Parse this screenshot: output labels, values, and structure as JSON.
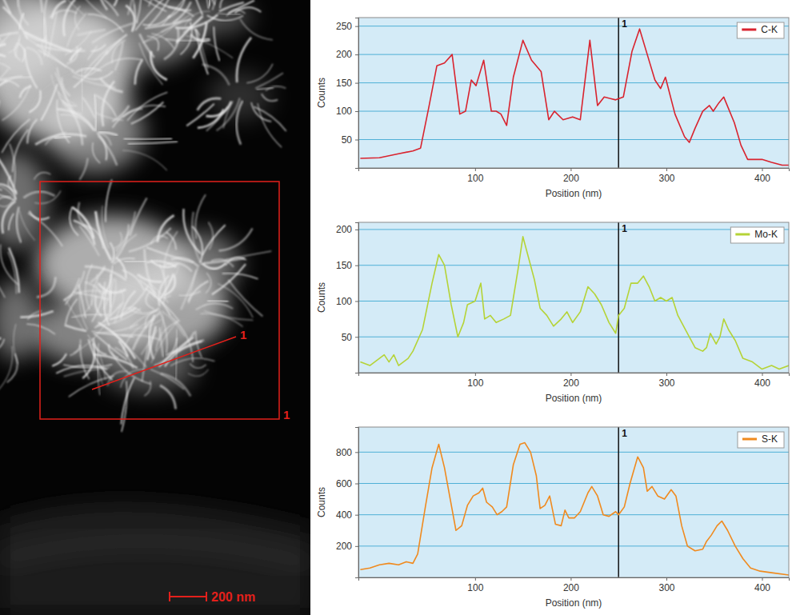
{
  "image": {
    "box_label": "1",
    "line_label": "1",
    "scale_bar": "200 nm"
  },
  "chart_data": [
    {
      "type": "line",
      "xlabel": "Position (nm)",
      "ylabel": "Counts",
      "xlim": [
        -22,
        428
      ],
      "xticks": [
        100,
        200,
        300,
        400
      ],
      "ylim": [
        0,
        265
      ],
      "yticks": [
        50,
        100,
        150,
        200,
        250
      ],
      "grid": true,
      "legend": "upper right",
      "annotations": [
        {
          "x": 250,
          "text": "1"
        }
      ],
      "x": [
        -20,
        0,
        20,
        35,
        43,
        52,
        60,
        68,
        76,
        84,
        90,
        96,
        101,
        109,
        117,
        122,
        127,
        133,
        140,
        150,
        159,
        169,
        177,
        183,
        192,
        202,
        210,
        220,
        228,
        235,
        247,
        255,
        264,
        272,
        280,
        288,
        294,
        299,
        309,
        319,
        324,
        330,
        338,
        345,
        349,
        355,
        360,
        371,
        378,
        385,
        392,
        400,
        410,
        421,
        428
      ],
      "series": [
        {
          "name": "C-K",
          "color": "#d9232e",
          "values": [
            17,
            18,
            25,
            30,
            35,
            110,
            180,
            185,
            200,
            95,
            100,
            155,
            145,
            190,
            100,
            100,
            95,
            75,
            160,
            225,
            190,
            170,
            85,
            100,
            85,
            90,
            85,
            225,
            110,
            125,
            120,
            125,
            205,
            245,
            200,
            155,
            140,
            160,
            95,
            55,
            45,
            70,
            100,
            110,
            100,
            115,
            125,
            80,
            40,
            15,
            15,
            15,
            10,
            5,
            5
          ]
        }
      ]
    },
    {
      "type": "line",
      "xlabel": "Position (nm)",
      "ylabel": "Counts",
      "xlim": [
        -22,
        428
      ],
      "xticks": [
        100,
        200,
        300,
        400
      ],
      "ylim": [
        0,
        210
      ],
      "yticks": [
        50,
        100,
        150,
        200
      ],
      "grid": true,
      "legend": "upper right",
      "annotations": [
        {
          "x": 250,
          "text": "1"
        }
      ],
      "x": [
        -20,
        -10,
        0,
        5,
        10,
        15,
        20,
        25,
        30,
        35,
        45,
        55,
        62,
        68,
        75,
        82,
        88,
        92,
        100,
        106,
        110,
        116,
        122,
        130,
        137,
        145,
        150,
        155,
        162,
        168,
        175,
        182,
        190,
        196,
        202,
        210,
        218,
        225,
        232,
        240,
        247,
        250,
        256,
        263,
        270,
        276,
        282,
        288,
        294,
        300,
        306,
        312,
        320,
        330,
        338,
        342,
        346,
        352,
        356,
        360,
        365,
        372,
        380,
        390,
        400,
        410,
        418,
        428
      ],
      "series": [
        {
          "name": "Mo-K",
          "color": "#b5d336",
          "values": [
            15,
            10,
            20,
            25,
            15,
            25,
            10,
            15,
            20,
            30,
            60,
            125,
            165,
            150,
            95,
            50,
            70,
            95,
            100,
            125,
            75,
            80,
            70,
            75,
            80,
            145,
            190,
            165,
            130,
            90,
            80,
            65,
            75,
            85,
            70,
            85,
            120,
            110,
            95,
            70,
            55,
            80,
            90,
            125,
            125,
            135,
            120,
            100,
            105,
            100,
            105,
            80,
            60,
            35,
            30,
            35,
            55,
            40,
            50,
            75,
            60,
            45,
            20,
            15,
            5,
            10,
            5,
            10
          ]
        }
      ]
    },
    {
      "type": "line",
      "xlabel": "Position (nm)",
      "ylabel": "Counts",
      "xlim": [
        -22,
        428
      ],
      "xticks": [
        100,
        200,
        300,
        400
      ],
      "ylim": [
        0,
        960
      ],
      "yticks": [
        200,
        400,
        600,
        800
      ],
      "grid": true,
      "legend": "upper right",
      "annotations": [
        {
          "x": 250,
          "text": "1"
        }
      ],
      "x": [
        -20,
        -10,
        0,
        10,
        20,
        28,
        35,
        40,
        48,
        55,
        62,
        68,
        74,
        80,
        86,
        92,
        98,
        104,
        108,
        112,
        118,
        123,
        128,
        133,
        140,
        147,
        152,
        158,
        164,
        168,
        173,
        178,
        184,
        190,
        194,
        198,
        204,
        210,
        218,
        222,
        228,
        234,
        240,
        247,
        250,
        256,
        262,
        270,
        276,
        280,
        285,
        291,
        298,
        305,
        310,
        316,
        322,
        330,
        338,
        342,
        347,
        353,
        358,
        364,
        372,
        380,
        388,
        398,
        410,
        428
      ],
      "series": [
        {
          "name": "S-K",
          "color": "#f08a1e",
          "values": [
            50,
            60,
            80,
            90,
            80,
            100,
            90,
            150,
            450,
            700,
            850,
            700,
            500,
            300,
            330,
            460,
            520,
            540,
            570,
            480,
            450,
            400,
            420,
            450,
            720,
            850,
            860,
            800,
            650,
            440,
            460,
            520,
            340,
            330,
            430,
            380,
            380,
            420,
            540,
            580,
            520,
            400,
            390,
            420,
            400,
            450,
            600,
            770,
            700,
            550,
            580,
            520,
            500,
            560,
            520,
            330,
            200,
            170,
            180,
            230,
            270,
            330,
            360,
            300,
            200,
            120,
            60,
            40,
            30,
            15
          ]
        }
      ]
    }
  ]
}
